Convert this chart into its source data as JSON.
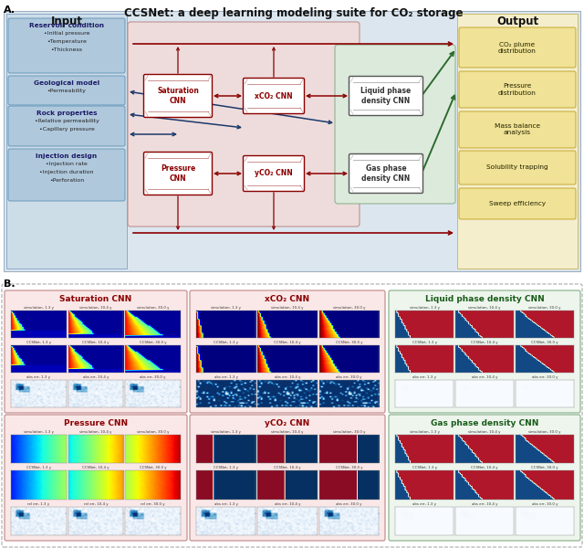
{
  "title_main": "CCSNet: a deep learning modeling suite for CO₂ storage",
  "label_A": "A.",
  "label_B": "B.",
  "input_title": "Input",
  "output_title": "Output",
  "input_boxes": [
    {
      "title": "Reservoir condition",
      "items": [
        "•Initial pressure",
        "•Temperature",
        "•Thickness"
      ]
    },
    {
      "title": "Geological model",
      "items": [
        "•Permeability"
      ]
    },
    {
      "title": "Rock properties",
      "items": [
        "•Relative permeability",
        "•Capillary pressure"
      ]
    },
    {
      "title": "Injection design",
      "items": [
        "•Injection rate",
        "•Injection duration",
        "•Perforation"
      ]
    }
  ],
  "output_boxes": [
    "CO₂ plume\ndistribution",
    "Pressure\ndistribution",
    "Mass balance\nanalysis",
    "Solubility trapping",
    "Sweep efficiency"
  ],
  "cnn_nodes_top": [
    "Saturation\nCNN",
    "xCO₂ CNN",
    "Liquid phase\ndensity CNN"
  ],
  "cnn_nodes_bottom": [
    "Pressure\nCNN",
    "yCO₂ CNN",
    "Gas phase\ndensity CNN"
  ],
  "panel_titles": [
    "Saturation CNN",
    "xCO₂ CNN",
    "Liquid phase density CNN",
    "Pressure CNN",
    "yCO₂ CNN",
    "Gas phase density CNN"
  ],
  "panel_bg_colors": [
    "#fae8e8",
    "#fae8e8",
    "#edf5ed",
    "#fae8e8",
    "#fae8e8",
    "#edf5ed"
  ],
  "panel_border_colors": [
    "#c49090",
    "#c49090",
    "#90b490",
    "#c49090",
    "#c49090",
    "#90b490"
  ],
  "panel_title_colors": [
    "#8b0000",
    "#8b0000",
    "#1a5c1a",
    "#8b0000",
    "#8b0000",
    "#1a5c1a"
  ],
  "bg_input": "#cddde8",
  "bg_input_box": "#b0c8dc",
  "bg_center_pink": "#eedcdc",
  "bg_center_green": "#dceadc",
  "bg_output": "#f5eecc",
  "bg_output_box": "#f0e296",
  "bg_main": "#dce6ef",
  "arrow_red": "#8b0000",
  "arrow_blue": "#1a3a6b",
  "arrow_green": "#2d6b2d",
  "time_labels": [
    "1.3 y",
    "10.4 y",
    "30.0 y"
  ],
  "row0_label": "simulation, ",
  "row1_label": "CCSNet, ",
  "row2_label_abs": "abs err, ",
  "row2_label_rel": "rel err, "
}
